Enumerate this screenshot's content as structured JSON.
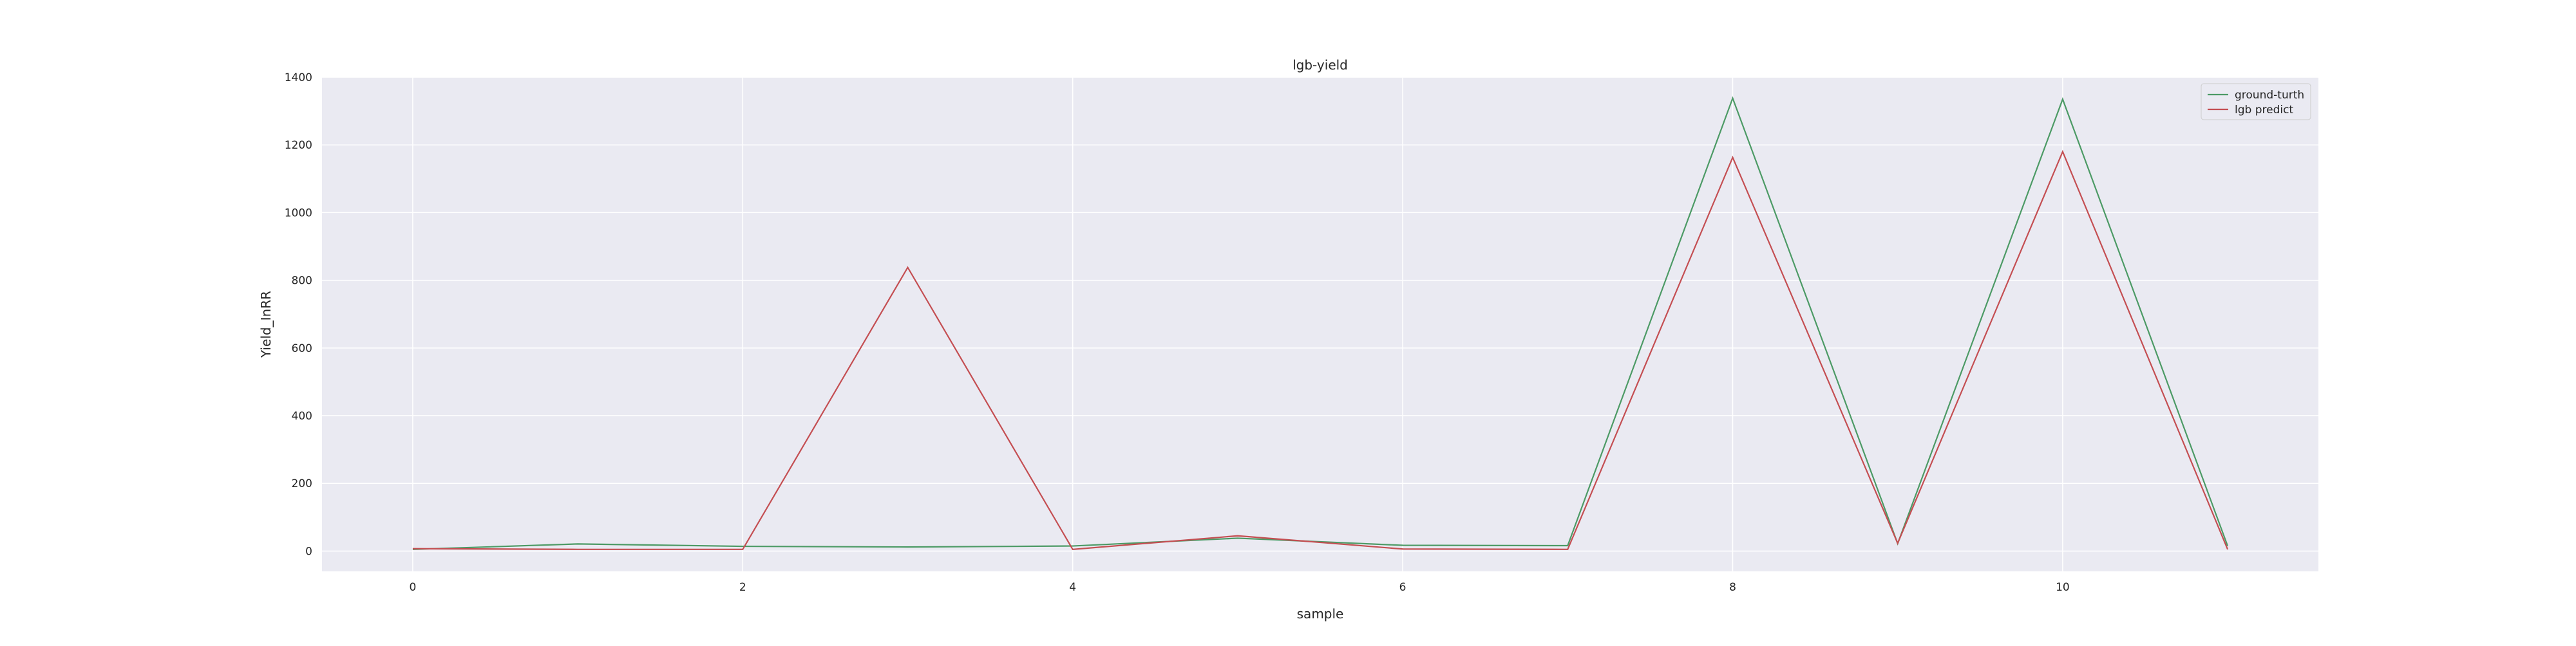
{
  "chart_data": {
    "type": "line",
    "title": "lgb-yield",
    "xlabel": "sample",
    "ylabel": "Yield_InRR",
    "x": [
      0,
      1,
      2,
      3,
      4,
      5,
      6,
      7,
      8,
      9,
      10,
      11
    ],
    "series": [
      {
        "name": "ground-turth",
        "color": "#4c9a65",
        "values": [
          5,
          21,
          14,
          12,
          15,
          38,
          17,
          16,
          1338,
          22,
          1335,
          15
        ]
      },
      {
        "name": "lgb predict",
        "color": "#c44e52",
        "values": [
          7,
          5,
          5,
          838,
          5,
          45,
          6,
          5,
          1163,
          23,
          1180,
          5
        ]
      }
    ],
    "xlim": [
      -0.55,
      11.55
    ],
    "ylim": [
      -60,
      1400
    ],
    "xticks": [
      0,
      2,
      4,
      6,
      8,
      10
    ],
    "yticks": [
      0,
      200,
      400,
      600,
      800,
      1000,
      1200,
      1400
    ],
    "grid": true,
    "legend_position": "top-right",
    "colors": {
      "plot_background": "#eaeaf2",
      "grid": "#ffffff",
      "text": "#262626"
    }
  }
}
